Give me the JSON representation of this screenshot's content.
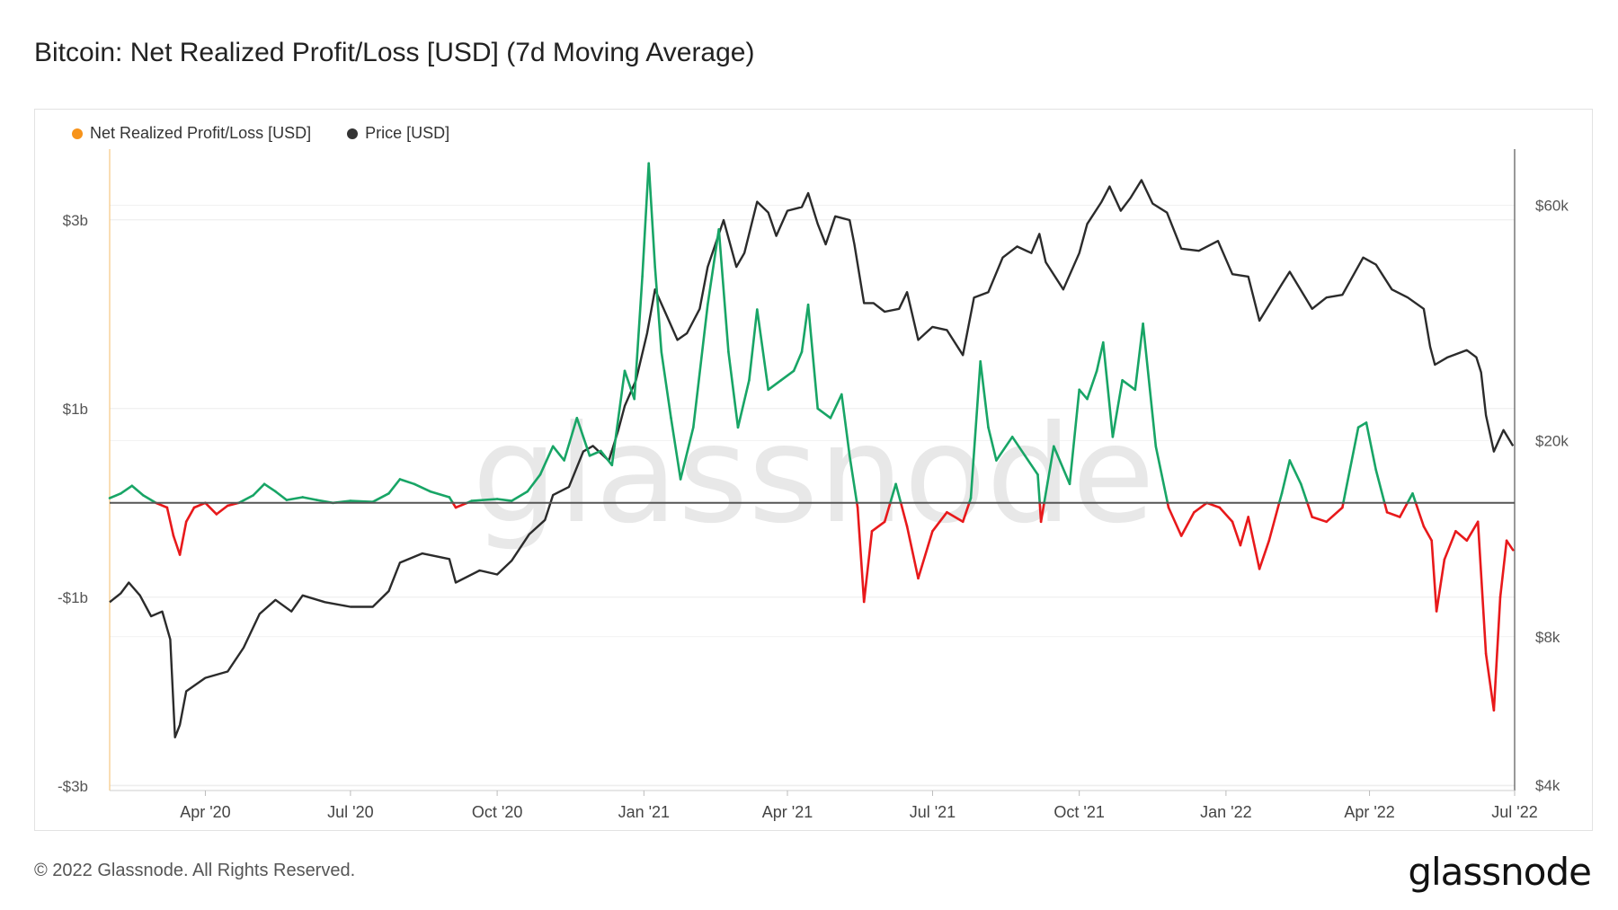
{
  "chart_title": "Bitcoin: Net Realized Profit/Loss [USD] (7d Moving Average)",
  "footer_copyright": "© 2022 Glassnode. All Rights Reserved.",
  "brand_logo": "glassnode",
  "watermark": "glassnode",
  "colors": {
    "profit": "#18a566",
    "loss": "#e8191b",
    "price": "#2b2b2b",
    "legend_nrpl": "#f7931a",
    "zero_line": "#555555"
  },
  "chart_data": {
    "type": "line",
    "title": "Bitcoin: Net Realized Profit/Loss [USD] (7d Moving Average)",
    "legend": [
      {
        "name": "Net Realized Profit/Loss [USD]",
        "color": "#f7931a"
      },
      {
        "name": "Price [USD]",
        "color": "#333333"
      }
    ],
    "legend_position": "top-left",
    "x_range": [
      "2020-02-01",
      "2022-07-01"
    ],
    "x_ticks": [
      {
        "date": "2020-04-01",
        "label": "Apr '20"
      },
      {
        "date": "2020-07-01",
        "label": "Jul '20"
      },
      {
        "date": "2020-10-01",
        "label": "Oct '20"
      },
      {
        "date": "2021-01-01",
        "label": "Jan '21"
      },
      {
        "date": "2021-04-01",
        "label": "Apr '21"
      },
      {
        "date": "2021-07-01",
        "label": "Jul '21"
      },
      {
        "date": "2021-10-01",
        "label": "Oct '21"
      },
      {
        "date": "2022-01-01",
        "label": "Jan '22"
      },
      {
        "date": "2022-04-01",
        "label": "Apr '22"
      },
      {
        "date": "2022-07-01",
        "label": "Jul '22"
      }
    ],
    "y_left": {
      "label": "",
      "range": [
        -3.05,
        3.75
      ],
      "unit": "billion USD",
      "ticks": [
        {
          "value": 3,
          "label": "$3b"
        },
        {
          "value": 1,
          "label": "$1b"
        },
        {
          "value": -1,
          "label": "-$1b"
        },
        {
          "value": -3,
          "label": "-$3b"
        }
      ]
    },
    "y_right": {
      "label": "",
      "scale": "log",
      "range": [
        3900,
        78000
      ],
      "ticks": [
        {
          "value": 60000,
          "label": "$60k"
        },
        {
          "value": 20000,
          "label": "$20k"
        },
        {
          "value": 8000,
          "label": "$8k"
        },
        {
          "value": 4000,
          "label": "$4k"
        }
      ]
    },
    "grid": true,
    "series": [
      {
        "name": "Net Realized Profit/Loss [USD]",
        "axis": "left",
        "unit": "billion USD",
        "points": [
          [
            "2020-02-01",
            0.05
          ],
          [
            "2020-02-08",
            0.1
          ],
          [
            "2020-02-15",
            0.18
          ],
          [
            "2020-02-22",
            0.08
          ],
          [
            "2020-03-01",
            0.0
          ],
          [
            "2020-03-08",
            -0.05
          ],
          [
            "2020-03-12",
            -0.35
          ],
          [
            "2020-03-16",
            -0.55
          ],
          [
            "2020-03-20",
            -0.2
          ],
          [
            "2020-03-25",
            -0.05
          ],
          [
            "2020-04-01",
            0.0
          ],
          [
            "2020-04-08",
            -0.12
          ],
          [
            "2020-04-15",
            -0.03
          ],
          [
            "2020-04-22",
            0.0
          ],
          [
            "2020-05-01",
            0.08
          ],
          [
            "2020-05-08",
            0.2
          ],
          [
            "2020-05-15",
            0.12
          ],
          [
            "2020-05-22",
            0.03
          ],
          [
            "2020-06-01",
            0.06
          ],
          [
            "2020-06-10",
            0.03
          ],
          [
            "2020-06-20",
            0.0
          ],
          [
            "2020-07-01",
            0.02
          ],
          [
            "2020-07-15",
            0.01
          ],
          [
            "2020-07-25",
            0.1
          ],
          [
            "2020-08-01",
            0.25
          ],
          [
            "2020-08-10",
            0.2
          ],
          [
            "2020-08-20",
            0.12
          ],
          [
            "2020-09-01",
            0.06
          ],
          [
            "2020-09-05",
            -0.05
          ],
          [
            "2020-09-15",
            0.02
          ],
          [
            "2020-10-01",
            0.04
          ],
          [
            "2020-10-10",
            0.02
          ],
          [
            "2020-10-20",
            0.12
          ],
          [
            "2020-10-28",
            0.3
          ],
          [
            "2020-11-05",
            0.6
          ],
          [
            "2020-11-12",
            0.45
          ],
          [
            "2020-11-20",
            0.9
          ],
          [
            "2020-11-28",
            0.5
          ],
          [
            "2020-12-05",
            0.55
          ],
          [
            "2020-12-12",
            0.4
          ],
          [
            "2020-12-20",
            1.4
          ],
          [
            "2020-12-26",
            1.1
          ],
          [
            "2020-12-31",
            2.4
          ],
          [
            "2021-01-04",
            3.6
          ],
          [
            "2021-01-08",
            2.5
          ],
          [
            "2021-01-12",
            1.6
          ],
          [
            "2021-01-18",
            0.9
          ],
          [
            "2021-01-24",
            0.25
          ],
          [
            "2021-02-01",
            0.8
          ],
          [
            "2021-02-10",
            2.1
          ],
          [
            "2021-02-17",
            2.9
          ],
          [
            "2021-02-23",
            1.6
          ],
          [
            "2021-03-01",
            0.8
          ],
          [
            "2021-03-08",
            1.3
          ],
          [
            "2021-03-13",
            2.05
          ],
          [
            "2021-03-20",
            1.2
          ],
          [
            "2021-03-28",
            1.3
          ],
          [
            "2021-04-05",
            1.4
          ],
          [
            "2021-04-10",
            1.6
          ],
          [
            "2021-04-14",
            2.1
          ],
          [
            "2021-04-20",
            1.0
          ],
          [
            "2021-04-28",
            0.9
          ],
          [
            "2021-05-05",
            1.15
          ],
          [
            "2021-05-10",
            0.5
          ],
          [
            "2021-05-15",
            -0.05
          ],
          [
            "2021-05-19",
            -1.05
          ],
          [
            "2021-05-24",
            -0.3
          ],
          [
            "2021-06-01",
            -0.2
          ],
          [
            "2021-06-08",
            0.2
          ],
          [
            "2021-06-15",
            -0.25
          ],
          [
            "2021-06-22",
            -0.8
          ],
          [
            "2021-07-01",
            -0.3
          ],
          [
            "2021-07-10",
            -0.1
          ],
          [
            "2021-07-20",
            -0.2
          ],
          [
            "2021-07-25",
            0.05
          ],
          [
            "2021-07-31",
            1.5
          ],
          [
            "2021-08-05",
            0.8
          ],
          [
            "2021-08-10",
            0.45
          ],
          [
            "2021-08-20",
            0.7
          ],
          [
            "2021-08-28",
            0.5
          ],
          [
            "2021-09-05",
            0.3
          ],
          [
            "2021-09-07",
            -0.2
          ],
          [
            "2021-09-15",
            0.6
          ],
          [
            "2021-09-25",
            0.2
          ],
          [
            "2021-10-01",
            1.2
          ],
          [
            "2021-10-06",
            1.1
          ],
          [
            "2021-10-12",
            1.4
          ],
          [
            "2021-10-16",
            1.7
          ],
          [
            "2021-10-22",
            0.7
          ],
          [
            "2021-10-28",
            1.3
          ],
          [
            "2021-11-05",
            1.2
          ],
          [
            "2021-11-10",
            1.9
          ],
          [
            "2021-11-18",
            0.6
          ],
          [
            "2021-11-26",
            -0.05
          ],
          [
            "2021-12-04",
            -0.35
          ],
          [
            "2021-12-12",
            -0.1
          ],
          [
            "2021-12-20",
            0.0
          ],
          [
            "2021-12-28",
            -0.05
          ],
          [
            "2022-01-05",
            -0.2
          ],
          [
            "2022-01-10",
            -0.45
          ],
          [
            "2022-01-15",
            -0.15
          ],
          [
            "2022-01-22",
            -0.7
          ],
          [
            "2022-01-28",
            -0.4
          ],
          [
            "2022-02-05",
            0.1
          ],
          [
            "2022-02-10",
            0.45
          ],
          [
            "2022-02-17",
            0.2
          ],
          [
            "2022-02-24",
            -0.15
          ],
          [
            "2022-03-05",
            -0.2
          ],
          [
            "2022-03-15",
            -0.05
          ],
          [
            "2022-03-25",
            0.8
          ],
          [
            "2022-03-30",
            0.85
          ],
          [
            "2022-04-05",
            0.35
          ],
          [
            "2022-04-12",
            -0.1
          ],
          [
            "2022-04-20",
            -0.15
          ],
          [
            "2022-04-28",
            0.1
          ],
          [
            "2022-05-05",
            -0.25
          ],
          [
            "2022-05-10",
            -0.4
          ],
          [
            "2022-05-13",
            -1.15
          ],
          [
            "2022-05-18",
            -0.6
          ],
          [
            "2022-05-25",
            -0.3
          ],
          [
            "2022-06-01",
            -0.4
          ],
          [
            "2022-06-08",
            -0.2
          ],
          [
            "2022-06-13",
            -1.6
          ],
          [
            "2022-06-18",
            -2.2
          ],
          [
            "2022-06-22",
            -1.0
          ],
          [
            "2022-06-26",
            -0.4
          ],
          [
            "2022-06-30",
            -0.5
          ]
        ]
      },
      {
        "name": "Price [USD]",
        "axis": "right",
        "unit": "USD",
        "points": [
          [
            "2020-02-01",
            9400
          ],
          [
            "2020-02-08",
            9800
          ],
          [
            "2020-02-13",
            10300
          ],
          [
            "2020-02-20",
            9700
          ],
          [
            "2020-02-27",
            8800
          ],
          [
            "2020-03-05",
            9000
          ],
          [
            "2020-03-10",
            7900
          ],
          [
            "2020-03-13",
            5000
          ],
          [
            "2020-03-16",
            5300
          ],
          [
            "2020-03-20",
            6200
          ],
          [
            "2020-04-01",
            6600
          ],
          [
            "2020-04-15",
            6800
          ],
          [
            "2020-04-25",
            7600
          ],
          [
            "2020-05-05",
            8900
          ],
          [
            "2020-05-15",
            9500
          ],
          [
            "2020-05-25",
            9000
          ],
          [
            "2020-06-01",
            9700
          ],
          [
            "2020-06-15",
            9400
          ],
          [
            "2020-07-01",
            9200
          ],
          [
            "2020-07-15",
            9200
          ],
          [
            "2020-07-25",
            9900
          ],
          [
            "2020-08-01",
            11300
          ],
          [
            "2020-08-15",
            11800
          ],
          [
            "2020-09-01",
            11500
          ],
          [
            "2020-09-05",
            10300
          ],
          [
            "2020-09-20",
            10900
          ],
          [
            "2020-10-01",
            10700
          ],
          [
            "2020-10-10",
            11400
          ],
          [
            "2020-10-21",
            12900
          ],
          [
            "2020-10-31",
            13800
          ],
          [
            "2020-11-05",
            15500
          ],
          [
            "2020-11-15",
            16100
          ],
          [
            "2020-11-24",
            19000
          ],
          [
            "2020-11-30",
            19500
          ],
          [
            "2020-12-10",
            18200
          ],
          [
            "2020-12-16",
            21000
          ],
          [
            "2020-12-20",
            23500
          ],
          [
            "2020-12-27",
            26500
          ],
          [
            "2021-01-03",
            33000
          ],
          [
            "2021-01-08",
            40500
          ],
          [
            "2021-01-15",
            36000
          ],
          [
            "2021-01-22",
            32000
          ],
          [
            "2021-01-28",
            33000
          ],
          [
            "2021-02-05",
            37000
          ],
          [
            "2021-02-10",
            45000
          ],
          [
            "2021-02-20",
            56000
          ],
          [
            "2021-02-28",
            45000
          ],
          [
            "2021-03-05",
            48000
          ],
          [
            "2021-03-13",
            61000
          ],
          [
            "2021-03-20",
            58000
          ],
          [
            "2021-03-25",
            52000
          ],
          [
            "2021-04-01",
            58500
          ],
          [
            "2021-04-10",
            59500
          ],
          [
            "2021-04-14",
            63500
          ],
          [
            "2021-04-20",
            55000
          ],
          [
            "2021-04-25",
            50000
          ],
          [
            "2021-05-01",
            57000
          ],
          [
            "2021-05-10",
            56000
          ],
          [
            "2021-05-13",
            50000
          ],
          [
            "2021-05-19",
            38000
          ],
          [
            "2021-05-25",
            38000
          ],
          [
            "2021-06-01",
            36500
          ],
          [
            "2021-06-10",
            37000
          ],
          [
            "2021-06-15",
            40000
          ],
          [
            "2021-06-22",
            32000
          ],
          [
            "2021-07-01",
            34000
          ],
          [
            "2021-07-10",
            33500
          ],
          [
            "2021-07-20",
            29800
          ],
          [
            "2021-07-27",
            39000
          ],
          [
            "2021-08-05",
            40000
          ],
          [
            "2021-08-14",
            47000
          ],
          [
            "2021-08-23",
            49500
          ],
          [
            "2021-09-01",
            48000
          ],
          [
            "2021-09-06",
            52500
          ],
          [
            "2021-09-10",
            46000
          ],
          [
            "2021-09-21",
            40500
          ],
          [
            "2021-10-01",
            48000
          ],
          [
            "2021-10-06",
            55000
          ],
          [
            "2021-10-15",
            61000
          ],
          [
            "2021-10-20",
            65500
          ],
          [
            "2021-10-27",
            58500
          ],
          [
            "2021-11-02",
            62000
          ],
          [
            "2021-11-09",
            67500
          ],
          [
            "2021-11-16",
            60500
          ],
          [
            "2021-11-25",
            58000
          ],
          [
            "2021-12-04",
            49000
          ],
          [
            "2021-12-15",
            48500
          ],
          [
            "2021-12-27",
            50800
          ],
          [
            "2022-01-05",
            43500
          ],
          [
            "2022-01-15",
            43000
          ],
          [
            "2022-01-22",
            35000
          ],
          [
            "2022-02-05",
            41500
          ],
          [
            "2022-02-10",
            44000
          ],
          [
            "2022-02-24",
            37000
          ],
          [
            "2022-03-05",
            39000
          ],
          [
            "2022-03-15",
            39500
          ],
          [
            "2022-03-28",
            47000
          ],
          [
            "2022-04-05",
            45500
          ],
          [
            "2022-04-15",
            40500
          ],
          [
            "2022-04-25",
            39000
          ],
          [
            "2022-05-05",
            37000
          ],
          [
            "2022-05-09",
            31000
          ],
          [
            "2022-05-12",
            28500
          ],
          [
            "2022-05-20",
            29500
          ],
          [
            "2022-06-01",
            30500
          ],
          [
            "2022-06-07",
            29500
          ],
          [
            "2022-06-10",
            27500
          ],
          [
            "2022-06-13",
            22500
          ],
          [
            "2022-06-18",
            19000
          ],
          [
            "2022-06-24",
            21000
          ],
          [
            "2022-06-30",
            19500
          ]
        ]
      }
    ]
  }
}
